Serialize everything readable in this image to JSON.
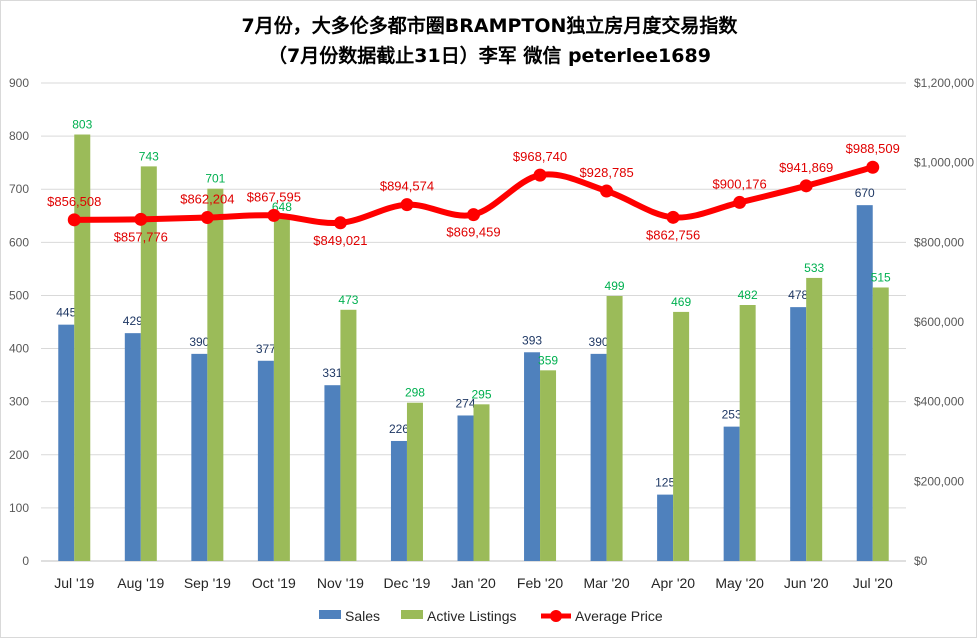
{
  "chart_data": {
    "type": "bar",
    "title": "7月份，大多伦多都市圈BRAMPTON独立房月度交易指数",
    "subtitle": "（7月份数据截止31日）李军 微信 peterlee1689",
    "categories": [
      "Jul '19",
      "Aug '19",
      "Sep '19",
      "Oct '19",
      "Nov '19",
      "Dec '19",
      "Jan '20",
      "Feb '20",
      "Mar '20",
      "Apr '20",
      "May '20",
      "Jun '20",
      "Jul '20"
    ],
    "series": [
      {
        "name": "Sales",
        "type": "bar",
        "axis": "left",
        "color": "#4f81bd",
        "values": [
          445,
          429,
          390,
          377,
          331,
          226,
          274,
          393,
          390,
          125,
          253,
          478,
          670
        ],
        "labels": [
          "445",
          "429",
          "390",
          "377",
          "331",
          "226",
          "274",
          "393",
          "390",
          "125",
          "253",
          "478",
          "670"
        ]
      },
      {
        "name": "Active Listings",
        "type": "bar",
        "axis": "left",
        "color": "#9bbb59",
        "values": [
          803,
          743,
          701,
          648,
          473,
          298,
          295,
          359,
          499,
          469,
          482,
          533,
          515
        ],
        "labels": [
          "803",
          "743",
          "701",
          "648",
          "473",
          "298",
          "295",
          "359",
          "499",
          "469",
          "482",
          "533",
          "515"
        ]
      },
      {
        "name": "Average Price",
        "type": "line",
        "axis": "right",
        "color": "#ff0000",
        "values": [
          856508,
          857776,
          862204,
          867595,
          849021,
          894574,
          869459,
          968740,
          928785,
          862756,
          900176,
          941869,
          988509
        ],
        "labels": [
          "$856,508",
          "$857,776",
          "$862,204",
          "$867,595",
          "$849,021",
          "$894,574",
          "$869,459",
          "$968,740",
          "$928,785",
          "$862,756",
          "$900,176",
          "$941,869",
          "$988,509"
        ]
      }
    ],
    "y_left": {
      "ylim": [
        0,
        900
      ],
      "ticks": [
        "0",
        "100",
        "200",
        "300",
        "400",
        "500",
        "600",
        "700",
        "800",
        "900"
      ]
    },
    "y_right": {
      "ylim": [
        0,
        1200000
      ],
      "ticks": [
        "$0",
        "$200,000",
        "$400,000",
        "$600,000",
        "$800,000",
        "$1,000,000",
        "$1,200,000"
      ]
    },
    "grid": true,
    "legend_position": "bottom"
  }
}
